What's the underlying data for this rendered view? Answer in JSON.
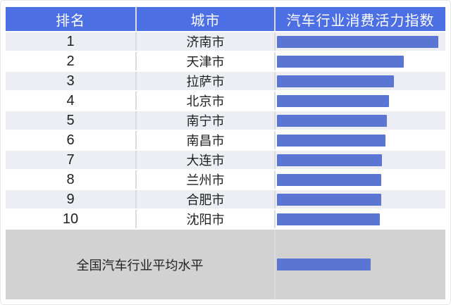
{
  "table": {
    "columns": [
      {
        "key": "rank",
        "label": "排名"
      },
      {
        "key": "city",
        "label": "城市"
      },
      {
        "key": "index",
        "label": "汽车行业消费活力指数"
      }
    ],
    "rows": [
      {
        "rank": "1",
        "city": "济南市",
        "bar_percent": 100
      },
      {
        "rank": "2",
        "city": "天津市",
        "bar_percent": 78.4
      },
      {
        "rank": "3",
        "city": "拉萨市",
        "bar_percent": 72.7
      },
      {
        "rank": "4",
        "city": "北京市",
        "bar_percent": 69.6
      },
      {
        "rank": "5",
        "city": "南宁市",
        "bar_percent": 68.3
      },
      {
        "rank": "6",
        "city": "南昌市",
        "bar_percent": 67.4
      },
      {
        "rank": "7",
        "city": "大连市",
        "bar_percent": 65.2
      },
      {
        "rank": "8",
        "city": "兰州市",
        "bar_percent": 64.8
      },
      {
        "rank": "9",
        "city": "合肥市",
        "bar_percent": 64.5
      },
      {
        "rank": "10",
        "city": "沈阳市",
        "bar_percent": 63.9
      }
    ],
    "summary": {
      "label": "全国汽车行业平均水平",
      "bar_percent": 58.1
    }
  },
  "colors": {
    "header_bg": "#4c6fe4",
    "header_text": "#ffffff",
    "bar": "#5b75d3",
    "row_shade_bg": "#eceef4",
    "row_plain_bg": "#ffffff",
    "summary_bg": "#d2d2d2",
    "body_text": "#1e1e1e",
    "cell_divider": "#d9dce3"
  },
  "chart_data": {
    "type": "bar",
    "orientation": "horizontal",
    "title": "汽车行业消费活力指数",
    "ranks": [
      "1",
      "2",
      "3",
      "4",
      "5",
      "6",
      "7",
      "8",
      "9",
      "10",
      null
    ],
    "categories": [
      "济南市",
      "天津市",
      "拉萨市",
      "北京市",
      "南宁市",
      "南昌市",
      "大连市",
      "兰州市",
      "合肥市",
      "沈阳市",
      "全国汽车行业平均水平"
    ],
    "values_relative_to_max_pct": [
      100,
      78.4,
      72.7,
      69.6,
      68.3,
      67.4,
      65.2,
      64.8,
      64.5,
      63.9,
      58.1
    ],
    "value_labels_shown": false,
    "axis_shown": false,
    "legend": null
  }
}
